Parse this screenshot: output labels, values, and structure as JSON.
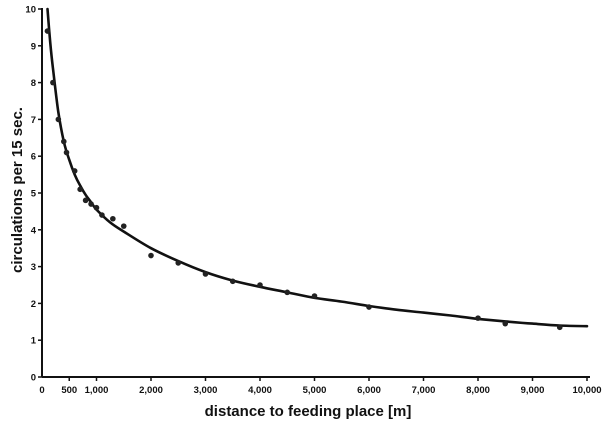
{
  "chart_data": {
    "type": "scatter",
    "title": "",
    "xlabel": "distance to feeding place [m]",
    "ylabel": "circulations per 15 sec.",
    "xlim": [
      0,
      10000
    ],
    "ylim": [
      0,
      10
    ],
    "x_ticks": [
      {
        "value": 500,
        "label": "500"
      },
      {
        "value": 1000,
        "label": "1,000"
      },
      {
        "value": 2000,
        "label": "2,000"
      },
      {
        "value": 3000,
        "label": "3,000"
      },
      {
        "value": 4000,
        "label": "4,000"
      },
      {
        "value": 5000,
        "label": "5,000"
      },
      {
        "value": 6000,
        "label": "6,000"
      },
      {
        "value": 7000,
        "label": "7,000"
      },
      {
        "value": 8000,
        "label": "8,000"
      },
      {
        "value": 9000,
        "label": "9,000"
      },
      {
        "value": 10000,
        "label": "10,000"
      }
    ],
    "origin_label": "0",
    "y_ticks": [
      {
        "value": 0,
        "label": "0"
      },
      {
        "value": 1,
        "label": "1"
      },
      {
        "value": 2,
        "label": "2"
      },
      {
        "value": 3,
        "label": "3"
      },
      {
        "value": 4,
        "label": "4"
      },
      {
        "value": 5,
        "label": "5"
      },
      {
        "value": 6,
        "label": "6"
      },
      {
        "value": 7,
        "label": "7"
      },
      {
        "value": 8,
        "label": "8"
      },
      {
        "value": 9,
        "label": "9"
      },
      {
        "value": 10,
        "label": "10"
      }
    ],
    "grid": false,
    "series": [
      {
        "points": [
          [
            100,
            9.4
          ],
          [
            200,
            8.0
          ],
          [
            300,
            7.0
          ],
          [
            400,
            6.4
          ],
          [
            450,
            6.1
          ],
          [
            600,
            5.6
          ],
          [
            700,
            5.1
          ],
          [
            800,
            4.8
          ],
          [
            900,
            4.7
          ],
          [
            1000,
            4.6
          ],
          [
            1100,
            4.4
          ],
          [
            1300,
            4.3
          ],
          [
            1500,
            4.1
          ],
          [
            2000,
            3.3
          ],
          [
            2500,
            3.1
          ],
          [
            3000,
            2.8
          ],
          [
            3500,
            2.6
          ],
          [
            4000,
            2.5
          ],
          [
            4500,
            2.3
          ],
          [
            5000,
            2.2
          ],
          [
            6000,
            1.9
          ],
          [
            8000,
            1.6
          ],
          [
            8500,
            1.45
          ],
          [
            9500,
            1.35
          ]
        ]
      }
    ],
    "fit_curve": {
      "points": [
        [
          100,
          10.0
        ],
        [
          150,
          9.1
        ],
        [
          200,
          8.4
        ],
        [
          300,
          7.2
        ],
        [
          400,
          6.4
        ],
        [
          500,
          5.9
        ],
        [
          600,
          5.5
        ],
        [
          700,
          5.2
        ],
        [
          800,
          4.95
        ],
        [
          900,
          4.75
        ],
        [
          1000,
          4.55
        ],
        [
          1250,
          4.2
        ],
        [
          1500,
          3.95
        ],
        [
          2000,
          3.5
        ],
        [
          2500,
          3.15
        ],
        [
          3000,
          2.85
        ],
        [
          3500,
          2.62
        ],
        [
          4000,
          2.45
        ],
        [
          4500,
          2.3
        ],
        [
          5000,
          2.15
        ],
        [
          5500,
          2.05
        ],
        [
          6000,
          1.93
        ],
        [
          6500,
          1.83
        ],
        [
          7000,
          1.75
        ],
        [
          7500,
          1.67
        ],
        [
          8000,
          1.58
        ],
        [
          8500,
          1.51
        ],
        [
          9000,
          1.45
        ],
        [
          9500,
          1.4
        ],
        [
          10000,
          1.38
        ]
      ]
    }
  }
}
